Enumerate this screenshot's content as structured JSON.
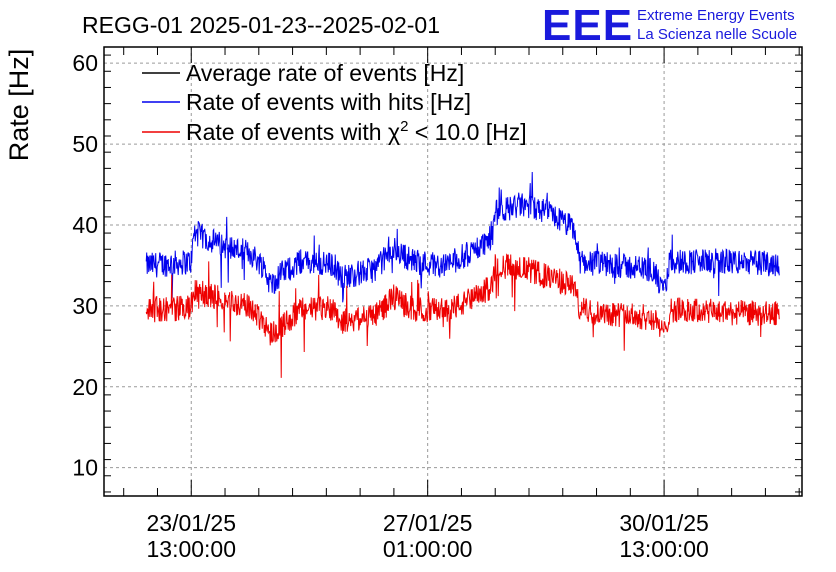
{
  "header": {
    "title": "REGG-01 2025-01-23--2025-02-01",
    "logo_text": "EEE",
    "logo_line1": "Extreme Energy Events",
    "logo_line2": "La Scienza nelle Scuole",
    "logo_color": "#1a1adc"
  },
  "chart_data": {
    "type": "line",
    "title": "REGG-01 2025-01-23--2025-02-01",
    "xlabel": "",
    "ylabel": "Rate [Hz]",
    "ylim": [
      6.5,
      62
    ],
    "xlim": [
      "2025-01-22T06:00:00",
      "2025-02-01T14:00:00"
    ],
    "y_ticks": [
      10,
      20,
      30,
      40,
      50,
      60
    ],
    "x_ticks": [
      {
        "x": "2025-01-23T13:00:00",
        "label_date": "23/01/25",
        "label_time": "13:00:00"
      },
      {
        "x": "2025-01-27T01:00:00",
        "label_date": "27/01/25",
        "label_time": "01:00:00"
      },
      {
        "x": "2025-01-30T13:00:00",
        "label_date": "30/01/25",
        "label_time": "13:00:00"
      }
    ],
    "grid": true,
    "legend_position": "top-left",
    "series": [
      {
        "name": "Average rate of events [Hz]",
        "color": "#000000",
        "points": []
      },
      {
        "name": "Rate of events with hits [Hz]",
        "color": "#0000ee",
        "points": [
          [
            "2025-01-22T21:00:00",
            35.0
          ],
          [
            "2025-01-23T08:00:00",
            35.3
          ],
          [
            "2025-01-23T13:00:00",
            35.5
          ],
          [
            "2025-01-23T14:00:00",
            39.0
          ],
          [
            "2025-01-24T00:00:00",
            37.5
          ],
          [
            "2025-01-24T10:00:00",
            36.5
          ],
          [
            "2025-01-24T15:00:00",
            34.8
          ],
          [
            "2025-01-24T17:00:00",
            32.5
          ],
          [
            "2025-01-24T21:00:00",
            34.0
          ],
          [
            "2025-01-25T04:00:00",
            35.5
          ],
          [
            "2025-01-25T16:00:00",
            35.0
          ],
          [
            "2025-01-25T18:00:00",
            33.5
          ],
          [
            "2025-01-26T06:00:00",
            34.5
          ],
          [
            "2025-01-26T13:00:00",
            37.0
          ],
          [
            "2025-01-26T20:00:00",
            35.5
          ],
          [
            "2025-01-27T07:00:00",
            35.0
          ],
          [
            "2025-01-27T16:00:00",
            36.5
          ],
          [
            "2025-01-28T00:00:00",
            38.5
          ],
          [
            "2025-01-28T01:00:00",
            41.5
          ],
          [
            "2025-01-28T10:00:00",
            42.5
          ],
          [
            "2025-01-28T20:00:00",
            41.5
          ],
          [
            "2025-01-29T05:00:00",
            39.5
          ],
          [
            "2025-01-29T07:00:00",
            35.5
          ],
          [
            "2025-01-29T20:00:00",
            35.0
          ],
          [
            "2025-01-30T09:00:00",
            34.5
          ],
          [
            "2025-01-30T13:00:00",
            31.5
          ],
          [
            "2025-01-30T15:00:00",
            35.5
          ],
          [
            "2025-01-31T10:00:00",
            35.5
          ],
          [
            "2025-02-01T06:00:00",
            35.2
          ]
        ]
      },
      {
        "name": "Rate of events with χ² < 10.0 [Hz]",
        "color": "#ee0000",
        "points": [
          [
            "2025-01-22T21:00:00",
            29.5
          ],
          [
            "2025-01-23T08:00:00",
            29.7
          ],
          [
            "2025-01-23T13:00:00",
            29.8
          ],
          [
            "2025-01-23T14:00:00",
            31.8
          ],
          [
            "2025-01-24T00:00:00",
            30.8
          ],
          [
            "2025-01-24T10:00:00",
            29.8
          ],
          [
            "2025-01-24T15:00:00",
            28.0
          ],
          [
            "2025-01-24T17:00:00",
            26.5
          ],
          [
            "2025-01-24T21:00:00",
            27.5
          ],
          [
            "2025-01-25T04:00:00",
            29.5
          ],
          [
            "2025-01-25T16:00:00",
            29.8
          ],
          [
            "2025-01-25T18:00:00",
            28.0
          ],
          [
            "2025-01-26T06:00:00",
            28.8
          ],
          [
            "2025-01-26T13:00:00",
            31.0
          ],
          [
            "2025-01-26T20:00:00",
            29.5
          ],
          [
            "2025-01-27T07:00:00",
            29.5
          ],
          [
            "2025-01-27T16:00:00",
            30.5
          ],
          [
            "2025-01-28T00:00:00",
            32.5
          ],
          [
            "2025-01-28T01:00:00",
            35.0
          ],
          [
            "2025-01-28T10:00:00",
            34.8
          ],
          [
            "2025-01-28T20:00:00",
            33.5
          ],
          [
            "2025-01-29T05:00:00",
            32.5
          ],
          [
            "2025-01-29T07:00:00",
            29.5
          ],
          [
            "2025-01-29T20:00:00",
            29.0
          ],
          [
            "2025-01-30T09:00:00",
            28.5
          ],
          [
            "2025-01-30T13:00:00",
            26.5
          ],
          [
            "2025-01-30T15:00:00",
            29.5
          ],
          [
            "2025-01-31T10:00:00",
            29.2
          ],
          [
            "2025-02-01T06:00:00",
            29.0
          ]
        ]
      }
    ]
  }
}
